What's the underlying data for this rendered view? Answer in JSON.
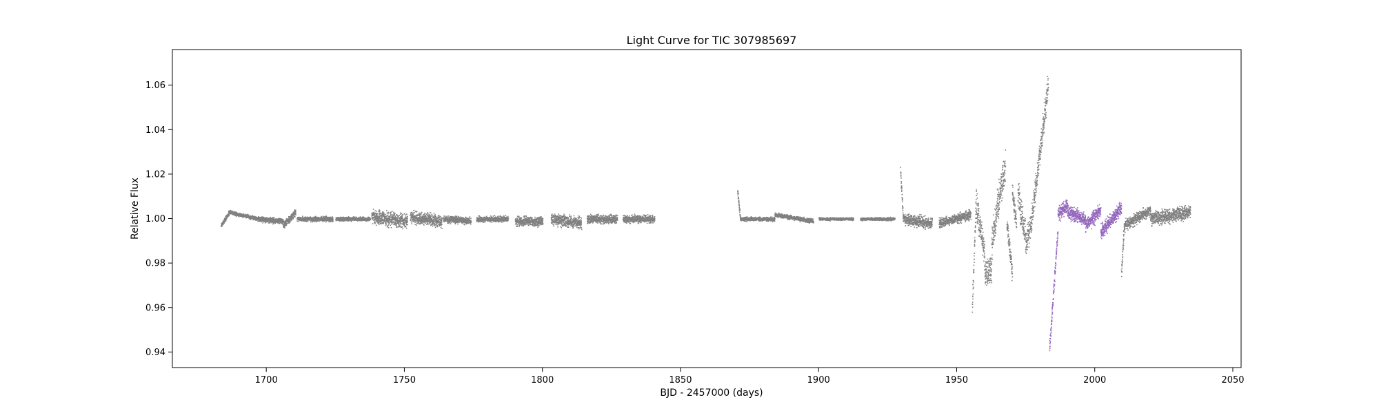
{
  "chart_data": {
    "type": "scatter",
    "title": "Light Curve for TIC 307985697",
    "xlabel": "BJD - 2457000 (days)",
    "ylabel": "Relative Flux",
    "xlim": [
      1666,
      2053
    ],
    "ylim": [
      0.933,
      1.076
    ],
    "xticks": [
      1700,
      1750,
      1800,
      1850,
      1900,
      1950,
      2000,
      2050
    ],
    "yticks": [
      0.94,
      0.96,
      0.98,
      1.0,
      1.02,
      1.04,
      1.06
    ],
    "xtick_labels": [
      "1700",
      "1750",
      "1800",
      "1850",
      "1900",
      "1950",
      "2000",
      "2050"
    ],
    "ytick_labels": [
      "0.94",
      "0.96",
      "0.98",
      "1.00",
      "1.02",
      "1.04",
      "1.06"
    ],
    "grid": false,
    "series": [
      {
        "color": "#808080",
        "segments": [
          {
            "x": [
              1683.5,
              1686.5
            ],
            "y": [
              0.997,
              1.003
            ],
            "scatter": 0.001
          },
          {
            "x": [
              1686.5,
              1697.0
            ],
            "y": [
              1.003,
              1.0
            ],
            "scatter": 0.0008
          },
          {
            "x": [
              1697.0,
              1706.0
            ],
            "y": [
              1.0,
              0.999
            ],
            "scatter": 0.0012
          },
          {
            "x": [
              1706.0,
              1710.5
            ],
            "y": [
              0.997,
              1.003
            ],
            "scatter": 0.0015
          },
          {
            "x": [
              1711.0,
              1724.0
            ],
            "y": [
              1.0,
              1.0
            ],
            "scatter": 0.001
          },
          {
            "x": [
              1725.0,
              1737.5
            ],
            "y": [
              1.0,
              1.0
            ],
            "scatter": 0.0008
          },
          {
            "x": [
              1738.0,
              1751.0
            ],
            "y": [
              1.001,
              0.999
            ],
            "scatter": 0.003
          },
          {
            "x": [
              1752.0,
              1763.5
            ],
            "y": [
              1.001,
              0.999
            ],
            "scatter": 0.0025
          },
          {
            "x": [
              1764.0,
              1774.0
            ],
            "y": [
              1.0,
              0.999
            ],
            "scatter": 0.0015
          },
          {
            "x": [
              1776.0,
              1787.5
            ],
            "y": [
              1.0,
              1.0
            ],
            "scatter": 0.0012
          },
          {
            "x": [
              1790.0,
              1800.0
            ],
            "y": [
              0.999,
              0.999
            ],
            "scatter": 0.002
          },
          {
            "x": [
              1803.0,
              1814.0
            ],
            "y": [
              1.0,
              0.998
            ],
            "scatter": 0.0025
          },
          {
            "x": [
              1816.0,
              1827.0
            ],
            "y": [
              1.0,
              1.0
            ],
            "scatter": 0.0018
          },
          {
            "x": [
              1829.0,
              1840.5
            ],
            "y": [
              1.0,
              1.0
            ],
            "scatter": 0.0016
          },
          {
            "x": [
              1870.5,
              1871.5
            ],
            "y": [
              1.013,
              1.001
            ],
            "scatter": 0.0015
          },
          {
            "x": [
              1871.5,
              1884.0
            ],
            "y": [
              1.0,
              1.0
            ],
            "scatter": 0.0008
          },
          {
            "x": [
              1884.0,
              1898.0
            ],
            "y": [
              1.002,
              0.999
            ],
            "scatter": 0.0009
          },
          {
            "x": [
              1900.0,
              1912.5
            ],
            "y": [
              1.0,
              1.0
            ],
            "scatter": 0.0006
          },
          {
            "x": [
              1915.0,
              1927.5
            ],
            "y": [
              1.0,
              1.0
            ],
            "scatter": 0.0006
          },
          {
            "x": [
              1929.5,
              1930.5
            ],
            "y": [
              1.022,
              1.0
            ],
            "scatter": 0.002
          },
          {
            "x": [
              1930.5,
              1941.0
            ],
            "y": [
              1.0,
              0.998
            ],
            "scatter": 0.0025
          },
          {
            "x": [
              1943.5,
              1955.0
            ],
            "y": [
              0.998,
              1.002
            ],
            "scatter": 0.002
          },
          {
            "x": [
              1955.5,
              1957.0
            ],
            "y": [
              0.96,
              1.012
            ],
            "scatter": 0.004
          },
          {
            "x": [
              1957.0,
              1960.0
            ],
            "y": [
              1.005,
              0.985
            ],
            "scatter": 0.007
          },
          {
            "x": [
              1960.0,
              1962.5
            ],
            "y": [
              0.975,
              0.978
            ],
            "scatter": 0.006
          },
          {
            "x": [
              1962.5,
              1967.5
            ],
            "y": [
              0.99,
              1.025
            ],
            "scatter": 0.007
          },
          {
            "x": [
              1968.0,
              1970.0
            ],
            "y": [
              0.998,
              0.975
            ],
            "scatter": 0.004
          },
          {
            "x": [
              1970.0,
              1971.5
            ],
            "y": [
              1.012,
              0.998
            ],
            "scatter": 0.004
          },
          {
            "x": [
              1972.0,
              1975.0
            ],
            "y": [
              1.012,
              0.99
            ],
            "scatter": 0.007
          },
          {
            "x": [
              1975.0,
              1977.0
            ],
            "y": [
              0.99,
              0.998
            ],
            "scatter": 0.005
          },
          {
            "x": [
              1977.0,
              1983.0
            ],
            "y": [
              1.0,
              1.06
            ],
            "scatter": 0.006
          },
          {
            "x": [
              2009.5,
              2010.5
            ],
            "y": [
              0.975,
              0.997
            ],
            "scatter": 0.003
          },
          {
            "x": [
              2010.5,
              2020.0
            ],
            "y": [
              0.997,
              1.004
            ],
            "scatter": 0.0025
          },
          {
            "x": [
              2020.0,
              2034.5
            ],
            "y": [
              1.0,
              1.003
            ],
            "scatter": 0.003
          }
        ]
      },
      {
        "color": "#9467bd",
        "segments": [
          {
            "x": [
              1983.5,
              1986.5
            ],
            "y": [
              0.942,
              0.995
            ],
            "scatter": 0.003
          },
          {
            "x": [
              1986.5,
              1990.0
            ],
            "y": [
              1.002,
              1.006
            ],
            "scatter": 0.003
          },
          {
            "x": [
              1990.0,
              1996.5
            ],
            "y": [
              1.003,
              1.0
            ],
            "scatter": 0.003
          },
          {
            "x": [
              1996.5,
              2002.0
            ],
            "y": [
              0.997,
              1.004
            ],
            "scatter": 0.003
          },
          {
            "x": [
              2002.0,
              2009.5
            ],
            "y": [
              0.994,
              1.005
            ],
            "scatter": 0.003
          }
        ]
      }
    ]
  }
}
